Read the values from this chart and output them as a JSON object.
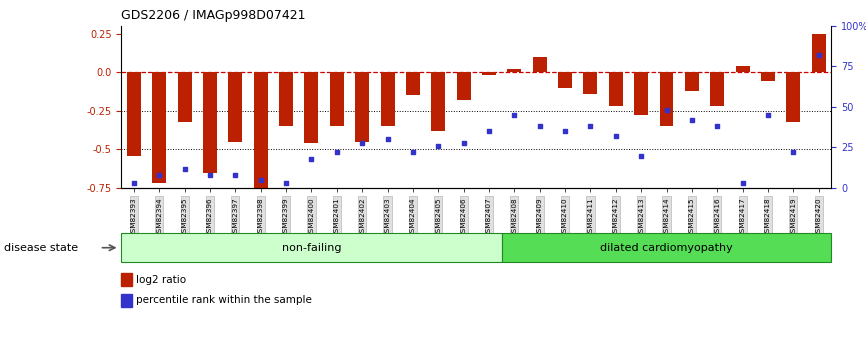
{
  "title": "GDS2206 / IMAGp998D07421",
  "samples": [
    "GSM82393",
    "GSM82394",
    "GSM82395",
    "GSM82396",
    "GSM82397",
    "GSM82398",
    "GSM82399",
    "GSM82400",
    "GSM82401",
    "GSM82402",
    "GSM82403",
    "GSM82404",
    "GSM82405",
    "GSM82406",
    "GSM82407",
    "GSM82408",
    "GSM82409",
    "GSM82410",
    "GSM82411",
    "GSM82412",
    "GSM82413",
    "GSM82414",
    "GSM82415",
    "GSM82416",
    "GSM82417",
    "GSM82418",
    "GSM82419",
    "GSM82420"
  ],
  "log2_ratio": [
    -0.54,
    -0.72,
    -0.32,
    -0.65,
    -0.45,
    -0.75,
    -0.35,
    -0.46,
    -0.35,
    -0.45,
    -0.35,
    -0.15,
    -0.38,
    -0.18,
    -0.02,
    0.02,
    0.1,
    -0.1,
    -0.14,
    -0.22,
    -0.28,
    -0.35,
    -0.12,
    -0.22,
    0.04,
    -0.06,
    -0.32,
    0.25
  ],
  "percentile": [
    3,
    8,
    12,
    8,
    8,
    5,
    3,
    18,
    22,
    28,
    30,
    22,
    26,
    28,
    35,
    45,
    38,
    35,
    38,
    32,
    20,
    48,
    42,
    38,
    3,
    45,
    22,
    82
  ],
  "non_failing_count": 15,
  "disease_state_label": "disease state",
  "group1_label": "non-failing",
  "group2_label": "dilated cardiomyopathy",
  "legend1": "log2 ratio",
  "legend2": "percentile rank within the sample",
  "bar_color": "#BB2000",
  "dot_color": "#3333CC",
  "dashed_line_color": "#CC0000",
  "ylim_left": [
    -0.75,
    0.3
  ],
  "ylim_right": [
    0,
    100
  ],
  "yticks_left": [
    -0.75,
    -0.5,
    -0.25,
    0.0,
    0.25
  ],
  "yticks_right": [
    0,
    25,
    50,
    75,
    100
  ],
  "bg_color": "#ffffff",
  "plot_bg": "#ffffff",
  "non_failing_bg": "#ccffcc",
  "dilated_bg": "#55dd55"
}
